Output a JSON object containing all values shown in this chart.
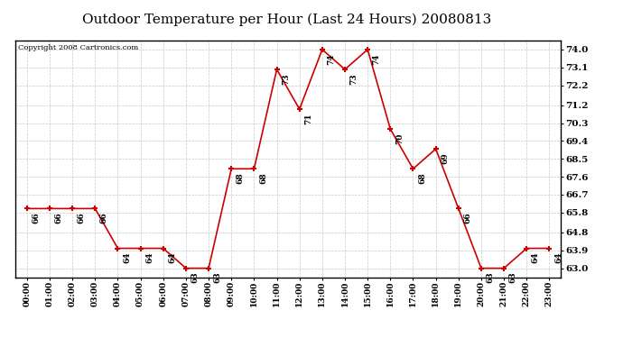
{
  "title": "Outdoor Temperature per Hour (Last 24 Hours) 20080813",
  "copyright": "Copyright 2008 Cartronics.com",
  "hours": [
    "00:00",
    "01:00",
    "02:00",
    "03:00",
    "04:00",
    "05:00",
    "06:00",
    "07:00",
    "08:00",
    "09:00",
    "10:00",
    "11:00",
    "12:00",
    "13:00",
    "14:00",
    "15:00",
    "16:00",
    "17:00",
    "18:00",
    "19:00",
    "20:00",
    "21:00",
    "22:00",
    "23:00"
  ],
  "temperatures": [
    66,
    66,
    66,
    66,
    64,
    64,
    64,
    63,
    63,
    68,
    68,
    73,
    71,
    74,
    73,
    74,
    70,
    68,
    69,
    66,
    63,
    63,
    64,
    64
  ],
  "line_color": "#cc0000",
  "marker_color": "#cc0000",
  "grid_color": "#bbbbbb",
  "background_color": "#ffffff",
  "title_fontsize": 11,
  "yticks": [
    63.0,
    63.9,
    64.8,
    65.8,
    66.7,
    67.6,
    68.5,
    69.4,
    70.3,
    71.2,
    72.2,
    73.1,
    74.0
  ],
  "ylim": [
    62.55,
    74.45
  ],
  "label_fontsize": 6.5,
  "xtick_fontsize": 6.5,
  "ytick_fontsize": 7.5,
  "copyright_fontsize": 6
}
